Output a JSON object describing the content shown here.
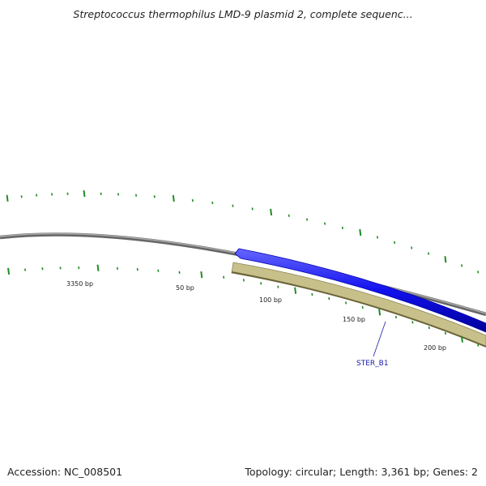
{
  "header": {
    "title": "Streptococcus thermophilus LMD-9 plasmid 2, complete sequenc..."
  },
  "footer": {
    "accession": "Accession: NC_008501",
    "summary": "Topology: circular; Length: 3,361 bp; Genes: 2"
  },
  "map": {
    "backbone_color": "#888888",
    "forward_gene_color": "#1111ee",
    "reverse_gene_color": "#c8c08a",
    "tick_color": "#228b22",
    "tick_labels": [
      "3350 bp",
      "50 bp",
      "100 bp",
      "150 bp",
      "200 bp"
    ],
    "gene_label": "STER_B1"
  }
}
